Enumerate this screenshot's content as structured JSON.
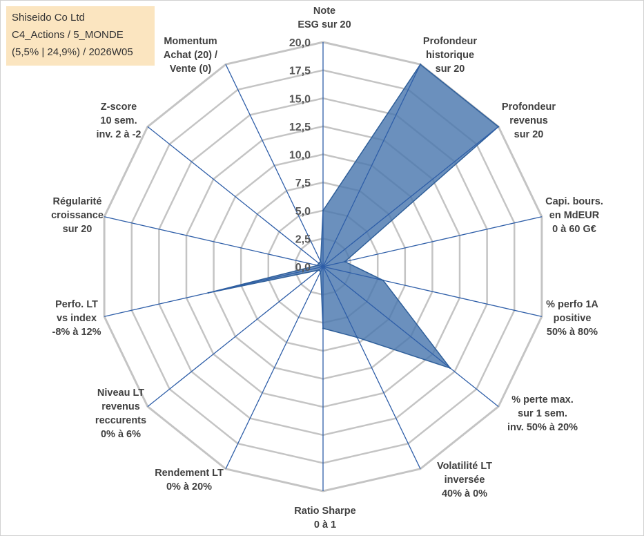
{
  "infobox": {
    "line1": "Shiseido Co Ltd",
    "line2": "C4_Actions / 5_MONDE",
    "line3": "(5,5% | 24,9%) / 2026W05"
  },
  "chart_data": {
    "type": "radar",
    "title": "",
    "rmax": 20,
    "ticks": [
      "0,0",
      "2,5",
      "5,0",
      "7,5",
      "10,0",
      "12,5",
      "15,0",
      "17,5",
      "20,0"
    ],
    "axes": [
      {
        "label": [
          "Note",
          "ESG sur 20"
        ]
      },
      {
        "label": [
          "Profondeur",
          "historique",
          "sur 20"
        ]
      },
      {
        "label": [
          "Profondeur",
          "revenus",
          "sur 20"
        ]
      },
      {
        "label": [
          "Capi. bours.",
          "en MdEUR",
          "0 à 60 G€"
        ]
      },
      {
        "label": [
          "% perfo 1A",
          "positive",
          "50% à 80%"
        ]
      },
      {
        "label": [
          "% perte max.",
          "sur 1 sem.",
          "inv. 50% à 20%"
        ]
      },
      {
        "label": [
          "Volatilité LT",
          "inversée",
          "40% à 0%"
        ]
      },
      {
        "label": [
          "Ratio Sharpe",
          "0 à 1"
        ]
      },
      {
        "label": [
          "Rendement LT",
          "0% à 20%"
        ]
      },
      {
        "label": [
          "Niveau LT",
          "revenus",
          "reccurents",
          "0% à 6%"
        ]
      },
      {
        "label": [
          "Perfo. LT",
          "vs index",
          "-8% à 12%"
        ]
      },
      {
        "label": [
          "Régularité",
          "croissance",
          "sur 20"
        ]
      },
      {
        "label": [
          "Z-score",
          "10 sem.",
          "inv. 2 à -2"
        ]
      },
      {
        "label": [
          "Momentum",
          "Achat (20) /",
          "Vente (0)"
        ]
      }
    ],
    "values": [
      5.0,
      20.0,
      20.0,
      2.0,
      5.5,
      14.5,
      7.0,
      5.5,
      0.5,
      0.5,
      10.5,
      0.5,
      0.5,
      0.5
    ],
    "colors": {
      "fill": "#4a78ae",
      "stroke": "#2f5f9a",
      "spoke": "#2e5ea8",
      "grid": "#c4c4c4"
    }
  }
}
